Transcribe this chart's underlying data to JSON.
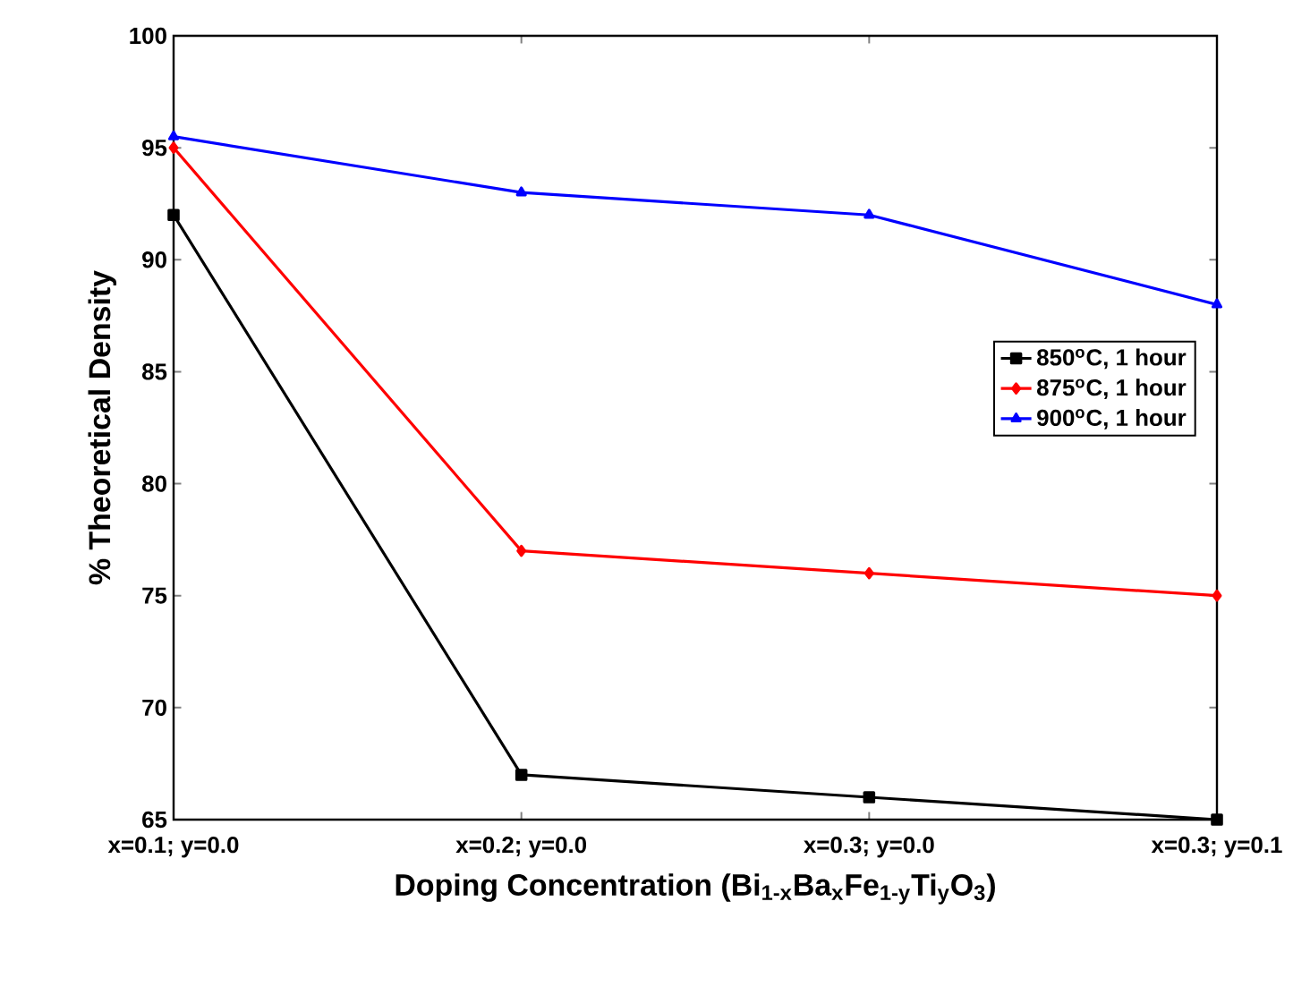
{
  "chart_data": {
    "type": "line",
    "xlabel": "Doping Concentration (Bi$_{1-x}$Ba$_{x}$Fe$_{1-y}$Ti$_{y}$O$_{3}$)",
    "ylabel": "% Theoretical Density",
    "categories": [
      "x=0.1; y=0.0",
      "x=0.2; y=0.0",
      "x=0.3; y=0.0",
      "x=0.3; y=0.1"
    ],
    "ylim": [
      65,
      100
    ],
    "yticks": [
      65,
      70,
      75,
      80,
      85,
      90,
      95,
      100
    ],
    "grid": false,
    "legend": "right",
    "line_style": "solid",
    "series": [
      {
        "name": "850$^{o}$C, 1 hour",
        "color": "#000000",
        "marker": "square",
        "values": [
          92,
          67,
          66,
          65
        ]
      },
      {
        "name": "875$^{o}$C, 1 hour",
        "color": "#ff0000",
        "marker": "diamond",
        "values": [
          95,
          77,
          76,
          75
        ]
      },
      {
        "name": "900$^{o}$C, 1 hour",
        "color": "#0000ff",
        "marker": "triangle",
        "values": [
          95.5,
          93,
          92,
          88
        ]
      }
    ]
  }
}
